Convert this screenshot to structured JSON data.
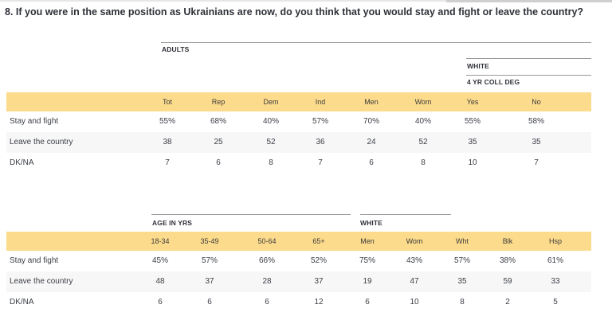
{
  "question": "8. If you were in the same position as Ukrainians are now, do you think that you would stay and fight or leave the country?",
  "colors": {
    "header_band": "#fcdb8c",
    "stripe": "#f7f7f7",
    "rule": "#9a9a9a"
  },
  "table1": {
    "group_adults": "ADULTS",
    "group_white": "WHITE",
    "group_coll": "4 YR COLL DEG",
    "columns": [
      "Tot",
      "Rep",
      "Dem",
      "Ind",
      "Men",
      "Wom",
      "Yes",
      "No"
    ],
    "rows": [
      {
        "label": "Stay and fight",
        "values": [
          "55%",
          "68%",
          "40%",
          "57%",
          "70%",
          "40%",
          "55%",
          "58%"
        ]
      },
      {
        "label": "Leave the country",
        "values": [
          "38",
          "25",
          "52",
          "36",
          "24",
          "52",
          "35",
          "35"
        ]
      },
      {
        "label": "DK/NA",
        "values": [
          "7",
          "6",
          "8",
          "7",
          "6",
          "8",
          "10",
          "7"
        ]
      }
    ]
  },
  "table2": {
    "group_age": "AGE IN YRS",
    "group_white": "WHITE",
    "columns": [
      "18-34",
      "35-49",
      "50-64",
      "65+",
      "Men",
      "Wom",
      "Wht",
      "Blk",
      "Hsp"
    ],
    "rows": [
      {
        "label": "Stay and fight",
        "values": [
          "45%",
          "57%",
          "66%",
          "52%",
          "75%",
          "43%",
          "57%",
          "38%",
          "61%"
        ]
      },
      {
        "label": "Leave the country",
        "values": [
          "48",
          "37",
          "28",
          "37",
          "19",
          "47",
          "35",
          "59",
          "33"
        ]
      },
      {
        "label": "DK/NA",
        "values": [
          "6",
          "6",
          "6",
          "12",
          "6",
          "10",
          "8",
          "2",
          "5"
        ]
      }
    ]
  }
}
